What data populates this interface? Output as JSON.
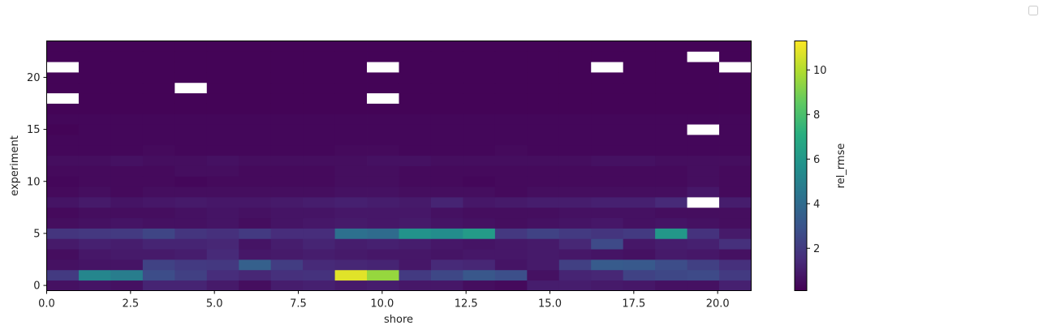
{
  "chart_data": {
    "type": "heatmap",
    "title": "",
    "xlabel": "shore",
    "ylabel": "experiment",
    "xlim": [
      0,
      21
    ],
    "ylim": [
      -0.5,
      23.5
    ],
    "x_ticks": [
      "0.0",
      "2.5",
      "5.0",
      "7.5",
      "10.0",
      "12.5",
      "15.0",
      "17.5",
      "20.0"
    ],
    "x_tick_values": [
      0,
      2.5,
      5,
      7.5,
      10,
      12.5,
      15,
      17.5,
      20
    ],
    "y_ticks": [
      "0",
      "5",
      "10",
      "15",
      "20"
    ],
    "y_tick_values": [
      0,
      5,
      10,
      15,
      20
    ],
    "colorbar": {
      "label": "rel_rmse",
      "min": 0.1,
      "max": 11.3,
      "ticks": [
        "2",
        "4",
        "6",
        "8",
        "10"
      ],
      "tick_values": [
        2,
        4,
        6,
        8,
        10
      ],
      "colormap": "viridis"
    },
    "grid": false,
    "legend": "top-right",
    "nan_color": "#ffffff",
    "values": [
      [
        0.6,
        0.7,
        0.6,
        1.2,
        1.2,
        0.9,
        0.5,
        1.0,
        1.1,
        0.9,
        1.0,
        0.8,
        0.8,
        0.5,
        0.4,
        1.0,
        1.0,
        0.9,
        0.8,
        0.6,
        0.6,
        1.1
      ],
      [
        2.0,
        5.2,
        4.8,
        2.7,
        2.2,
        1.5,
        1.3,
        1.6,
        1.7,
        10.8,
        9.5,
        2.0,
        2.5,
        3.1,
        2.8,
        0.6,
        1.2,
        1.3,
        2.3,
        2.5,
        2.6,
        2.0
      ],
      [
        0.6,
        0.7,
        0.7,
        2.3,
        2.0,
        1.9,
        3.5,
        2.1,
        1.4,
        1.3,
        1.2,
        0.8,
        1.4,
        1.3,
        0.7,
        0.9,
        2.2,
        3.3,
        3.2,
        2.7,
        2.2,
        1.6
      ],
      [
        0.5,
        0.8,
        0.9,
        0.9,
        1.0,
        1.4,
        0.8,
        0.9,
        1.0,
        0.9,
        0.8,
        0.8,
        0.7,
        0.8,
        0.8,
        0.9,
        0.8,
        0.7,
        0.6,
        0.9,
        0.8,
        0.6
      ],
      [
        0.9,
        1.1,
        1.0,
        1.2,
        1.2,
        1.3,
        0.7,
        1.0,
        1.2,
        1.0,
        1.1,
        1.0,
        0.8,
        0.7,
        0.8,
        0.9,
        1.3,
        2.6,
        0.8,
        1.0,
        1.1,
        1.6
      ],
      [
        1.8,
        1.9,
        2.0,
        2.4,
        1.8,
        1.6,
        2.0,
        1.5,
        1.5,
        4.2,
        4.0,
        5.8,
        5.5,
        6.2,
        1.9,
        2.3,
        2.0,
        1.8,
        2.0,
        6.0,
        1.7,
        0.9
      ],
      [
        0.5,
        0.6,
        0.7,
        0.6,
        0.6,
        0.7,
        0.5,
        0.7,
        0.8,
        0.9,
        0.8,
        0.9,
        0.7,
        0.6,
        0.5,
        0.6,
        0.7,
        0.8,
        0.6,
        0.7,
        0.6,
        0.5
      ],
      [
        0.4,
        0.5,
        0.5,
        0.5,
        0.6,
        0.7,
        0.6,
        0.7,
        0.7,
        0.8,
        0.8,
        0.8,
        0.6,
        0.5,
        0.5,
        0.5,
        0.6,
        0.6,
        0.6,
        0.5,
        0.5,
        0.5
      ],
      [
        0.7,
        0.9,
        0.7,
        0.8,
        0.9,
        0.8,
        0.8,
        0.9,
        1.0,
        1.1,
        1.0,
        0.9,
        1.2,
        0.8,
        0.9,
        1.0,
        1.0,
        1.1,
        1.1,
        1.4,
        null,
        1.0
      ],
      [
        0.4,
        0.5,
        0.4,
        0.5,
        0.5,
        0.5,
        0.5,
        0.5,
        0.5,
        0.6,
        0.6,
        0.5,
        0.5,
        0.5,
        0.4,
        0.5,
        0.5,
        0.5,
        0.5,
        0.5,
        0.8,
        0.4
      ],
      [
        0.3,
        0.4,
        0.4,
        0.4,
        0.3,
        0.4,
        0.4,
        0.4,
        0.4,
        0.5,
        0.5,
        0.4,
        0.4,
        0.3,
        0.4,
        0.4,
        0.4,
        0.4,
        0.4,
        0.4,
        0.5,
        0.4
      ],
      [
        0.4,
        0.4,
        0.4,
        0.4,
        0.5,
        0.5,
        0.4,
        0.4,
        0.4,
        0.5,
        0.5,
        0.4,
        0.4,
        0.4,
        0.4,
        0.4,
        0.4,
        0.4,
        0.4,
        0.4,
        0.5,
        0.4
      ],
      [
        0.5,
        0.5,
        0.6,
        0.5,
        0.5,
        0.6,
        0.5,
        0.5,
        0.5,
        0.5,
        0.6,
        0.6,
        0.5,
        0.5,
        0.5,
        0.5,
        0.5,
        0.6,
        0.6,
        0.5,
        0.5,
        0.5
      ],
      [
        0.3,
        0.3,
        0.3,
        0.4,
        0.3,
        0.3,
        0.3,
        0.3,
        0.3,
        0.4,
        0.4,
        0.3,
        0.3,
        0.3,
        0.4,
        0.3,
        0.3,
        0.3,
        0.3,
        0.3,
        0.3,
        0.3
      ],
      [
        0.3,
        0.3,
        0.3,
        0.3,
        0.3,
        0.3,
        0.3,
        0.3,
        0.3,
        0.3,
        0.3,
        0.3,
        0.3,
        0.3,
        0.3,
        0.3,
        0.3,
        0.3,
        0.3,
        0.3,
        0.3,
        0.3
      ],
      [
        0.2,
        0.3,
        0.3,
        0.3,
        0.3,
        0.3,
        0.3,
        0.3,
        0.3,
        0.3,
        0.3,
        0.3,
        0.3,
        0.3,
        0.3,
        0.3,
        0.3,
        0.3,
        0.3,
        0.3,
        null,
        0.3
      ],
      [
        0.3,
        0.3,
        0.3,
        0.3,
        0.3,
        0.3,
        0.3,
        0.3,
        0.3,
        0.3,
        0.3,
        0.3,
        0.3,
        0.3,
        0.3,
        0.3,
        0.3,
        0.3,
        0.3,
        0.3,
        0.3,
        0.3
      ],
      [
        0.2,
        0.2,
        0.2,
        0.2,
        0.2,
        0.2,
        0.2,
        0.2,
        0.2,
        0.2,
        0.2,
        0.2,
        0.2,
        0.2,
        0.2,
        0.2,
        0.2,
        0.2,
        0.2,
        0.2,
        0.2,
        0.2
      ],
      [
        null,
        0.2,
        0.2,
        0.2,
        0.2,
        0.2,
        0.2,
        0.2,
        0.2,
        0.2,
        null,
        0.2,
        0.2,
        0.2,
        0.2,
        0.2,
        0.2,
        0.2,
        0.2,
        0.2,
        0.2,
        0.2
      ],
      [
        0.2,
        0.2,
        0.2,
        0.2,
        null,
        0.2,
        0.2,
        0.2,
        0.2,
        0.2,
        0.2,
        0.2,
        0.2,
        0.2,
        0.2,
        0.2,
        0.2,
        0.2,
        0.2,
        0.2,
        0.2,
        0.2
      ],
      [
        0.2,
        0.2,
        0.2,
        0.2,
        0.2,
        0.2,
        0.2,
        0.2,
        0.2,
        0.2,
        0.2,
        0.2,
        0.2,
        0.2,
        0.2,
        0.2,
        0.2,
        0.2,
        0.2,
        0.2,
        0.2,
        0.2
      ],
      [
        null,
        0.2,
        0.2,
        0.2,
        0.2,
        0.2,
        0.2,
        0.2,
        0.2,
        0.2,
        null,
        0.2,
        0.2,
        0.2,
        0.2,
        0.2,
        0.2,
        null,
        0.2,
        0.2,
        0.2,
        null
      ],
      [
        0.2,
        0.2,
        0.2,
        0.2,
        0.2,
        0.2,
        0.2,
        0.2,
        0.2,
        0.2,
        0.2,
        0.2,
        0.2,
        0.2,
        0.2,
        0.2,
        0.2,
        0.2,
        0.2,
        0.2,
        null,
        0.2
      ],
      [
        0.2,
        0.2,
        0.2,
        0.2,
        0.2,
        0.2,
        0.2,
        0.2,
        0.2,
        0.2,
        0.2,
        0.2,
        0.2,
        0.2,
        0.2,
        0.2,
        0.2,
        0.2,
        0.2,
        0.2,
        0.2,
        0.2
      ]
    ]
  }
}
